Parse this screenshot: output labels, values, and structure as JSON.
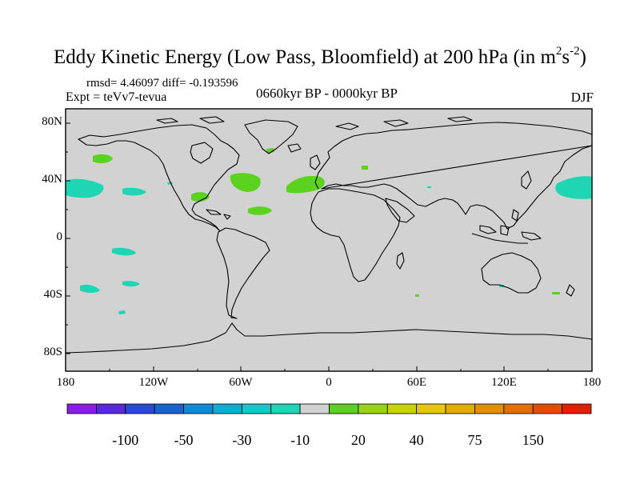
{
  "title": {
    "main": "Eddy Kinetic Energy (Low Pass, Bloomfield) at 200 hPa (in m",
    "sup1": "2",
    "mid": "s",
    "sup2": "-2",
    "close": ")"
  },
  "stats": "rmsd= 4.46097 diff= -0.193596",
  "experiment": "Expt = teVv7-tevua",
  "period": "0660kyr BP - 0000kyr BP",
  "season": "DJF",
  "lat_labels": [
    "80N",
    "40N",
    "0",
    "40S",
    "80S"
  ],
  "lon_labels": [
    "180",
    "120W",
    "60W",
    "0",
    "60E",
    "120E",
    "180"
  ],
  "colorbar": {
    "colors": [
      "#8a1ee6",
      "#5a28e0",
      "#2c48d8",
      "#1464d2",
      "#0a8cdc",
      "#0aaed6",
      "#14c8c8",
      "#1ed6b4",
      "#d2d2d2",
      "#5ad21e",
      "#9ad214",
      "#c8d20a",
      "#e6c800",
      "#e6aa00",
      "#e68c00",
      "#e66e00",
      "#e64c00",
      "#e61e00"
    ],
    "labels": [
      "-100",
      "-50",
      "-30",
      "-10",
      "20",
      "40",
      "75",
      "150"
    ]
  },
  "map": {
    "background": "#d2d2d2",
    "positive_color": "#5ad21e",
    "negative_color": "#1ed6b4"
  }
}
